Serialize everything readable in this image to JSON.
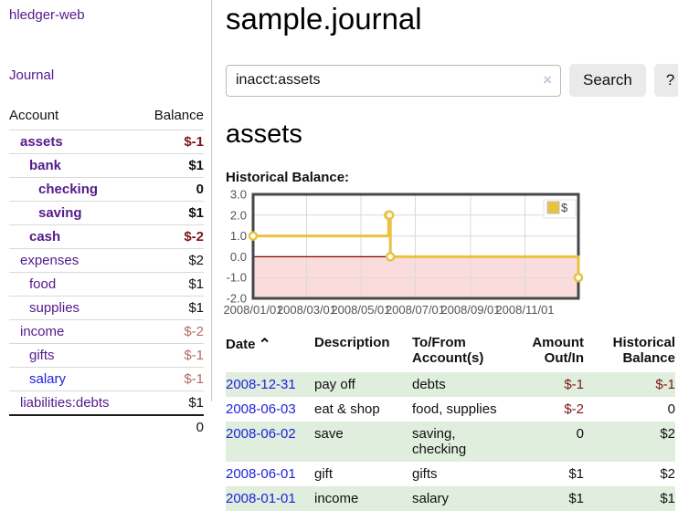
{
  "colors": {
    "link_purple": "#551a8b",
    "link_blue": "#2222dd",
    "neg_strong": "#7f1616",
    "neg_soft": "#b56a6a",
    "row_stripe": "#dfeedd",
    "chart_line": "#e9c23f",
    "chart_marker_fill": "#ffffff",
    "chart_negative_region": "#fbdcdc",
    "chart_zero_line": "#8b0000",
    "chart_grid": "#dadada",
    "chart_border": "#474747",
    "chart_axis_text": "#545454"
  },
  "app": {
    "brand": "hledger-web",
    "nav_journal": "Journal"
  },
  "sidebar": {
    "col_account": "Account",
    "col_balance": "Balance",
    "accounts": [
      {
        "name": "assets",
        "balance": "$-1",
        "level": 1,
        "bold": true
      },
      {
        "name": "bank",
        "balance": "$1",
        "level": 2,
        "bold": true
      },
      {
        "name": "checking",
        "balance": "0",
        "level": 3,
        "bold": true
      },
      {
        "name": "saving",
        "balance": "$1",
        "level": 3,
        "bold": true
      },
      {
        "name": "cash",
        "balance": "$-2",
        "level": 2,
        "bold": true
      },
      {
        "name": "expenses",
        "balance": "$2",
        "level": 1,
        "bold": false
      },
      {
        "name": "food",
        "balance": "$1",
        "level": 2,
        "bold": false
      },
      {
        "name": "supplies",
        "balance": "$1",
        "level": 2,
        "bold": false
      },
      {
        "name": "income",
        "balance": "$-2",
        "level": 1,
        "bold": false
      },
      {
        "name": "gifts",
        "balance": "$-1",
        "level": 2,
        "bold": false
      },
      {
        "name": "salary",
        "balance": "$-1",
        "level": 2,
        "bold": false,
        "blue": true
      },
      {
        "name": "liabilities:debts",
        "balance": "$1",
        "level": 1,
        "bold": false
      }
    ],
    "total": "0"
  },
  "main": {
    "title": "sample.journal",
    "search": {
      "query": "inacct:assets",
      "clear_icon": "×",
      "button_label": "Search",
      "help_label": "?"
    },
    "account_heading": "assets",
    "chart_label": "Historical Balance:"
  },
  "chart_data": {
    "type": "line",
    "step": true,
    "title": "Historical Balance:",
    "legend": {
      "label": "$",
      "position": "top-right"
    },
    "x_range": [
      "2008-01-01",
      "2008-12-31"
    ],
    "ylim": [
      -2,
      3
    ],
    "yticks": [
      {
        "value": 3,
        "label": "3.0"
      },
      {
        "value": 2,
        "label": "2.0"
      },
      {
        "value": 1,
        "label": "1.0"
      },
      {
        "value": 0,
        "label": "0.0"
      },
      {
        "value": -1,
        "label": "-1.0"
      },
      {
        "value": -2,
        "label": "-2.0"
      }
    ],
    "xticks": [
      {
        "value": "2008-01-01",
        "label": "2008/01/01"
      },
      {
        "value": "2008-03-01",
        "label": "2008/03/01"
      },
      {
        "value": "2008-05-01",
        "label": "2008/05/01"
      },
      {
        "value": "2008-07-01",
        "label": "2008/07/01"
      },
      {
        "value": "2008-09-01",
        "label": "2008/09/01"
      },
      {
        "value": "2008-11-01",
        "label": "2008/11/01"
      }
    ],
    "series": [
      {
        "name": "$",
        "points": [
          {
            "x": "2008-01-01",
            "y": 1
          },
          {
            "x": "2008-06-01",
            "y": 2
          },
          {
            "x": "2008-06-02",
            "y": 2
          },
          {
            "x": "2008-06-03",
            "y": 0
          },
          {
            "x": "2008-12-31",
            "y": -1
          }
        ]
      }
    ]
  },
  "register": {
    "headers": [
      "Date",
      "Description",
      "To/From Account(s)",
      "Amount Out/In",
      "Historical Balance"
    ],
    "sort_icon": "⌃",
    "rows": [
      {
        "date": "2008-12-31",
        "description": "pay off",
        "accounts": "debts",
        "amount": "$-1",
        "balance": "$-1"
      },
      {
        "date": "2008-06-03",
        "description": "eat & shop",
        "accounts": "food, supplies",
        "amount": "$-2",
        "balance": "0"
      },
      {
        "date": "2008-06-02",
        "description": "save",
        "accounts": "saving, checking",
        "amount": "0",
        "balance": "$2"
      },
      {
        "date": "2008-06-01",
        "description": "gift",
        "accounts": "gifts",
        "amount": "$1",
        "balance": "$2"
      },
      {
        "date": "2008-01-01",
        "description": "income",
        "accounts": "salary",
        "amount": "$1",
        "balance": "$1"
      }
    ]
  }
}
